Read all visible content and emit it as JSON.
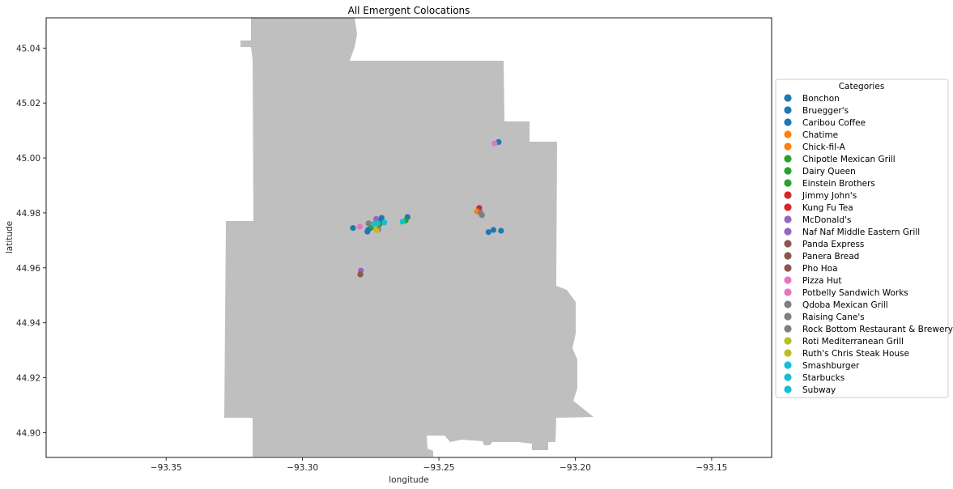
{
  "chart_data": {
    "type": "scatter",
    "title": "All Emergent Colocations",
    "xlabel": "longitude",
    "ylabel": "latitude",
    "xlim": [
      -93.394,
      -93.128
    ],
    "ylim": [
      44.891,
      45.051
    ],
    "x_ticks": [
      -93.35,
      -93.3,
      -93.25,
      -93.2,
      -93.15
    ],
    "x_tick_labels": [
      "−93.35",
      "−93.30",
      "−93.25",
      "−93.20",
      "−93.15"
    ],
    "y_ticks": [
      44.9,
      44.92,
      44.94,
      44.96,
      44.98,
      45.0,
      45.02,
      45.04
    ],
    "y_tick_labels": [
      "44.90",
      "44.92",
      "44.94",
      "44.96",
      "44.98",
      "45.00",
      "45.02",
      "45.04"
    ],
    "grid": false,
    "background_color": "#bfbfbf",
    "legend": {
      "title": "Categories",
      "placement": "right",
      "entries": [
        {
          "label": "Bonchon",
          "color": "#1f77b4"
        },
        {
          "label": "Bruegger's",
          "color": "#1f77b4"
        },
        {
          "label": "Caribou Coffee",
          "color": "#1f77b4"
        },
        {
          "label": "Chatime",
          "color": "#ff7f0e"
        },
        {
          "label": "Chick-fil-A",
          "color": "#ff7f0e"
        },
        {
          "label": "Chipotle Mexican Grill",
          "color": "#2ca02c"
        },
        {
          "label": "Dairy Queen",
          "color": "#2ca02c"
        },
        {
          "label": "Einstein Brothers",
          "color": "#2ca02c"
        },
        {
          "label": "Jimmy John's",
          "color": "#d62728"
        },
        {
          "label": "Kung Fu Tea",
          "color": "#d62728"
        },
        {
          "label": "McDonald's",
          "color": "#9467bd"
        },
        {
          "label": "Naf Naf Middle Eastern Grill",
          "color": "#9467bd"
        },
        {
          "label": "Panda Express",
          "color": "#8c564b"
        },
        {
          "label": "Panera Bread",
          "color": "#8c564b"
        },
        {
          "label": "Pho Hoa",
          "color": "#8c564b"
        },
        {
          "label": "Pizza Hut",
          "color": "#e377c2"
        },
        {
          "label": "Potbelly Sandwich Works",
          "color": "#e377c2"
        },
        {
          "label": "Qdoba Mexican Grill",
          "color": "#7f7f7f"
        },
        {
          "label": "Raising Cane's",
          "color": "#7f7f7f"
        },
        {
          "label": "Rock Bottom Restaurant & Brewery",
          "color": "#7f7f7f"
        },
        {
          "label": "Roti Mediterranean Grill",
          "color": "#bcbd22"
        },
        {
          "label": "Ruth's Chris Steak House",
          "color": "#bcbd22"
        },
        {
          "label": "Smashburger",
          "color": "#17becf"
        },
        {
          "label": "Starbucks",
          "color": "#17becf"
        },
        {
          "label": "Subway",
          "color": "#17becf"
        }
      ]
    },
    "points": [
      {
        "x": -93.2281,
        "y": 45.0058,
        "color": "#1f77b4"
      },
      {
        "x": -93.2296,
        "y": 45.0053,
        "color": "#e377c2"
      },
      {
        "x": -93.2815,
        "y": 44.9745,
        "color": "#1f77b4"
      },
      {
        "x": -93.279,
        "y": 44.975,
        "color": "#e377c2"
      },
      {
        "x": -93.2758,
        "y": 44.9762,
        "color": "#7f7f7f"
      },
      {
        "x": -93.273,
        "y": 44.9778,
        "color": "#9467bd"
      },
      {
        "x": -93.271,
        "y": 44.9782,
        "color": "#1f77b4"
      },
      {
        "x": -93.2712,
        "y": 44.9772,
        "color": "#1f77b4"
      },
      {
        "x": -93.27,
        "y": 44.9765,
        "color": "#17becf"
      },
      {
        "x": -93.2718,
        "y": 44.9758,
        "color": "#2ca02c"
      },
      {
        "x": -93.2735,
        "y": 44.9752,
        "color": "#bcbd22"
      },
      {
        "x": -93.2742,
        "y": 44.9748,
        "color": "#bcbd22"
      },
      {
        "x": -93.275,
        "y": 44.9745,
        "color": "#2ca02c"
      },
      {
        "x": -93.276,
        "y": 44.9738,
        "color": "#1f77b4"
      },
      {
        "x": -93.2762,
        "y": 44.9732,
        "color": "#1f77b4"
      },
      {
        "x": -93.2722,
        "y": 44.974,
        "color": "#9467bd"
      },
      {
        "x": -93.2728,
        "y": 44.9736,
        "color": "#bcbd22"
      },
      {
        "x": -93.274,
        "y": 44.976,
        "color": "#17becf"
      },
      {
        "x": -93.2725,
        "y": 44.9762,
        "color": "#17becf"
      },
      {
        "x": -93.2615,
        "y": 44.9785,
        "color": "#1f77b4"
      },
      {
        "x": -93.2622,
        "y": 44.9772,
        "color": "#2ca02c"
      },
      {
        "x": -93.2633,
        "y": 44.9768,
        "color": "#17becf"
      },
      {
        "x": -93.2352,
        "y": 44.9818,
        "color": "#d62728"
      },
      {
        "x": -93.236,
        "y": 44.9805,
        "color": "#ff7f0e"
      },
      {
        "x": -93.2347,
        "y": 44.98,
        "color": "#7f7f7f"
      },
      {
        "x": -93.2342,
        "y": 44.9792,
        "color": "#7f7f7f"
      },
      {
        "x": -93.23,
        "y": 44.9738,
        "color": "#1f77b4"
      },
      {
        "x": -93.2318,
        "y": 44.973,
        "color": "#1f77b4"
      },
      {
        "x": -93.2272,
        "y": 44.9735,
        "color": "#1f77b4"
      },
      {
        "x": -93.2786,
        "y": 44.959,
        "color": "#9467bd"
      },
      {
        "x": -93.2788,
        "y": 44.9576,
        "color": "#8c564b"
      }
    ]
  }
}
